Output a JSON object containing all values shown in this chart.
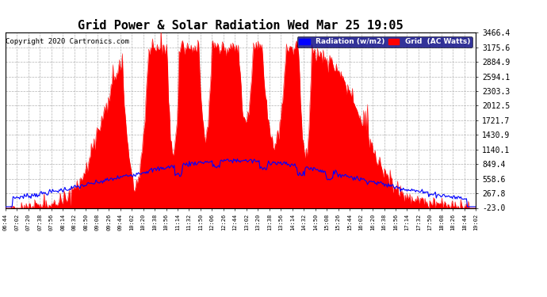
{
  "title": "Grid Power & Solar Radiation Wed Mar 25 19:05",
  "copyright": "Copyright 2020 Cartronics.com",
  "legend_radiation": "Radiation (w/m2)",
  "legend_grid": "Grid  (AC Watts)",
  "yticks": [
    3466.4,
    3175.6,
    2884.9,
    2594.1,
    2303.3,
    2012.5,
    1721.7,
    1430.9,
    1140.1,
    849.4,
    558.6,
    267.8,
    -23.0
  ],
  "ymin": -23.0,
  "ymax": 3466.4,
  "radiation_color": "#0000ff",
  "grid_color": "#ff0000",
  "background_color": "#ffffff",
  "plot_bg_color": "#ffffff",
  "grid_line_color": "#aaaaaa",
  "title_fontsize": 11,
  "copyright_fontsize": 7,
  "xtick_labels": [
    "06:44",
    "07:02",
    "07:20",
    "07:38",
    "07:56",
    "08:14",
    "08:32",
    "08:50",
    "09:08",
    "09:26",
    "09:44",
    "10:02",
    "10:20",
    "10:38",
    "10:56",
    "11:14",
    "11:32",
    "11:50",
    "12:06",
    "12:26",
    "12:44",
    "13:02",
    "13:20",
    "13:38",
    "13:56",
    "14:14",
    "14:32",
    "14:50",
    "15:08",
    "15:26",
    "15:44",
    "16:02",
    "16:20",
    "16:38",
    "16:56",
    "17:14",
    "17:32",
    "17:50",
    "18:08",
    "18:26",
    "18:44",
    "19:02"
  ]
}
